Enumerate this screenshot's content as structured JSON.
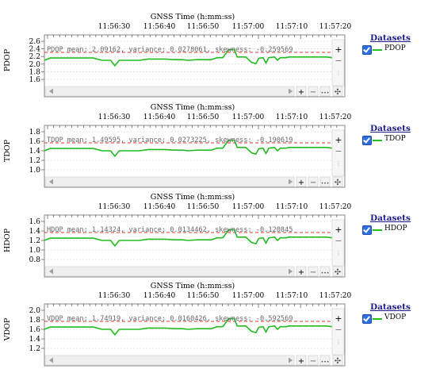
{
  "charts": [
    {
      "id": "pdop",
      "title": "GNSS Time (h:mm:ss)",
      "ylabel": "PDOP",
      "yticks": [
        "2.6",
        "2.4",
        "2.2",
        "2.0",
        "1.8",
        "1.6"
      ],
      "stats": "PDOP mean: 2.09162, variance: 0.0278061, skewness: -0.259569",
      "legend_title": "Datasets",
      "legend_item": "PDOP"
    },
    {
      "id": "tdop",
      "title": "GNSS Time (h:mm:ss)",
      "ylabel": "TDOP",
      "yticks": [
        "1.8",
        "1.6",
        "1.4",
        "1.2",
        "1.0"
      ],
      "stats": "TDOP mean: 1.49595, variance: 0.0273225, skewness: -0.190619",
      "legend_title": "Datasets",
      "legend_item": "TDOP"
    },
    {
      "id": "hdop",
      "title": "GNSS Time (h:mm:ss)",
      "ylabel": "HDOP",
      "yticks": [
        "1.6",
        "1.4",
        "1.2",
        "1.0",
        "0.8"
      ],
      "stats": "HDOP mean: 1.14324, variance: 0.0134462, skewness: -0.120845",
      "legend_title": "Datasets",
      "legend_item": "HDOP"
    },
    {
      "id": "vdop",
      "title": "GNSS Time (h:mm:ss)",
      "ylabel": "VDOP",
      "yticks": [
        "2.0",
        "1.8",
        "1.6",
        "1.4",
        "1.2"
      ],
      "stats": "VDOP mean: 1.74919, variance: 0.0160426, skewness: -0.592569",
      "legend_title": "Datasets",
      "legend_item": "VDOP"
    }
  ],
  "xticks": [
    "11:56:30",
    "11:56:40",
    "11:56:50",
    "11:57:00",
    "11:57:10",
    "11:57:20"
  ],
  "toolbar": {
    "zoom_in": "+",
    "zoom_out": "−",
    "fit": "•••",
    "pan": "✣"
  },
  "colors": {
    "series": "#22bb22",
    "mean_line": "#e03030",
    "grid": "#d4d4d4",
    "frame": "#888888"
  }
}
